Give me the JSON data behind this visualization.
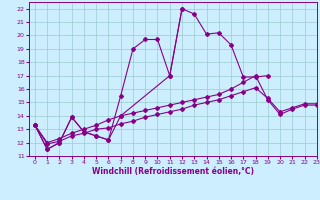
{
  "title": "",
  "xlabel": "Windchill (Refroidissement éolien,°C)",
  "ylabel": "",
  "xlim": [
    -0.5,
    23
  ],
  "ylim": [
    11,
    22.5
  ],
  "yticks": [
    11,
    12,
    13,
    14,
    15,
    16,
    17,
    18,
    19,
    20,
    21,
    22
  ],
  "xticks": [
    0,
    1,
    2,
    3,
    4,
    5,
    6,
    7,
    8,
    9,
    10,
    11,
    12,
    13,
    14,
    15,
    16,
    17,
    18,
    19,
    20,
    21,
    22,
    23
  ],
  "bg_color": "#cceeff",
  "line_color": "#880088",
  "grid_color": "#99cccc",
  "series": [
    {
      "x": [
        0,
        1,
        2,
        3,
        4,
        5,
        6,
        7,
        8,
        9,
        10,
        11,
        12,
        13,
        14,
        15,
        16,
        17,
        18,
        19
      ],
      "y": [
        13.3,
        11.5,
        12.0,
        13.9,
        12.8,
        12.5,
        12.2,
        15.5,
        19.0,
        19.7,
        19.7,
        17.0,
        22.0,
        21.6,
        20.1,
        20.2,
        19.3,
        16.9,
        16.9,
        17.0
      ]
    },
    {
      "x": [
        0,
        1,
        2,
        3,
        4,
        5,
        6,
        7,
        11,
        12
      ],
      "y": [
        13.3,
        11.5,
        12.0,
        13.9,
        12.8,
        12.5,
        12.2,
        14.0,
        17.0,
        22.0
      ]
    },
    {
      "x": [
        0,
        1,
        2,
        3,
        4,
        5,
        6,
        7,
        8,
        9,
        10,
        11,
        12,
        13,
        14,
        15,
        16,
        17,
        18,
        19,
        20,
        21,
        22,
        23
      ],
      "y": [
        13.3,
        12.0,
        12.3,
        12.7,
        13.0,
        13.3,
        13.7,
        14.0,
        14.2,
        14.4,
        14.6,
        14.8,
        15.0,
        15.2,
        15.4,
        15.6,
        16.0,
        16.5,
        17.0,
        15.2,
        14.1,
        14.5,
        14.8,
        14.8
      ]
    },
    {
      "x": [
        0,
        1,
        2,
        3,
        4,
        5,
        6,
        7,
        8,
        9,
        10,
        11,
        12,
        13,
        14,
        15,
        16,
        17,
        18,
        19,
        20,
        21,
        22,
        23
      ],
      "y": [
        13.3,
        11.9,
        12.1,
        12.5,
        12.7,
        13.0,
        13.1,
        13.4,
        13.6,
        13.9,
        14.1,
        14.3,
        14.5,
        14.8,
        15.0,
        15.2,
        15.5,
        15.8,
        16.1,
        15.3,
        14.3,
        14.6,
        14.9,
        14.9
      ]
    }
  ]
}
